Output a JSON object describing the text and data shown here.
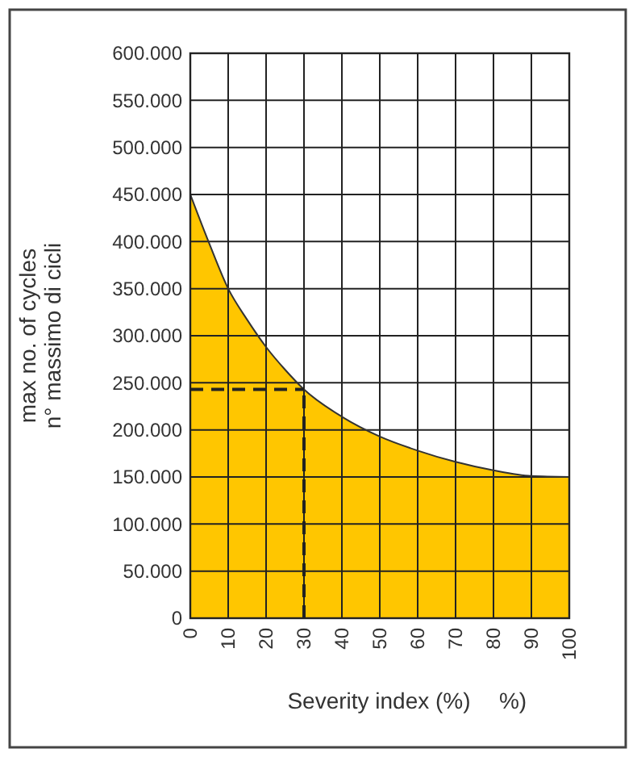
{
  "chart_data": {
    "type": "area",
    "xlabel": "Severity index (%)",
    "ylabel": "max no. of cycles\nn° massimo di cicli",
    "annotations": [
      "%)"
    ],
    "x": [
      0,
      5,
      10,
      15,
      20,
      25,
      30,
      40,
      50,
      60,
      70,
      80,
      90,
      100
    ],
    "series": [
      {
        "color": "#ffc600",
        "values": [
          450000,
          398000,
          350000,
          317000,
          288000,
          264000,
          243000,
          214000,
          193000,
          178000,
          166000,
          157000,
          151000,
          150000
        ]
      }
    ],
    "xlim": [
      0,
      100
    ],
    "xticks": [
      0,
      10,
      20,
      30,
      40,
      50,
      60,
      70,
      80,
      90,
      100
    ],
    "ylim": [
      0,
      600000
    ],
    "yticks": [
      {
        "value": 0,
        "label": "0"
      },
      {
        "value": 50000,
        "label": "50.000"
      },
      {
        "value": 100000,
        "label": "100.000"
      },
      {
        "value": 150000,
        "label": "150.000"
      },
      {
        "value": 200000,
        "label": "200.000"
      },
      {
        "value": 250000,
        "label": "250.000"
      },
      {
        "value": 300000,
        "label": "300.000"
      },
      {
        "value": 350000,
        "label": "350.000"
      },
      {
        "value": 400000,
        "label": "400.000"
      },
      {
        "value": 450000,
        "label": "450.000"
      },
      {
        "value": 500000,
        "label": "500.000"
      },
      {
        "value": 550000,
        "label": "550.000"
      },
      {
        "value": 600000,
        "label": "600.000"
      }
    ],
    "grid": true,
    "ref_lines": [
      {
        "axis": "x",
        "value": 30,
        "line_style": "dashed",
        "color": "#222222"
      },
      {
        "axis": "y",
        "value": 243000,
        "line_style": "dashed",
        "color": "#222222"
      }
    ]
  }
}
